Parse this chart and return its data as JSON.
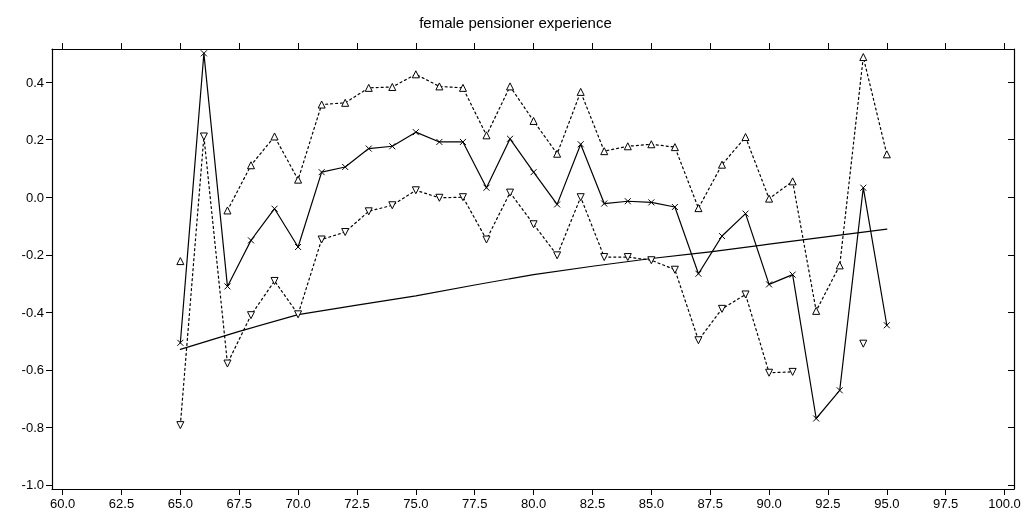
{
  "chart_data": {
    "type": "line",
    "title": "female pensioner experience",
    "x": [
      65,
      66,
      67,
      68,
      69,
      70,
      71,
      72,
      73,
      74,
      75,
      76,
      77,
      78,
      79,
      80,
      81,
      82,
      83,
      84,
      85,
      86,
      87,
      88,
      89,
      90,
      91,
      92,
      93,
      94,
      95
    ],
    "series": [
      {
        "color": "#000000",
        "marker": "cross",
        "line_style": "solid",
        "values": [
          -0.506,
          0.5,
          -0.31,
          -0.15,
          -0.04,
          -0.173,
          0.087,
          0.105,
          0.169,
          0.177,
          0.226,
          0.192,
          0.192,
          0.033,
          0.203,
          0.087,
          -0.025,
          0.184,
          -0.022,
          -0.014,
          -0.018,
          -0.034,
          -0.266,
          -0.135,
          -0.057,
          -0.303,
          -0.269,
          -0.769,
          -0.671,
          0.033,
          -0.445
        ]
      },
      {
        "color": "#000000",
        "marker": "triangle",
        "line_style": "dotted",
        "values": [
          -0.222,
          null,
          -0.046,
          0.111,
          0.211,
          0.061,
          0.322,
          0.328,
          0.38,
          0.383,
          0.427,
          0.385,
          0.38,
          0.215,
          0.385,
          0.265,
          0.151,
          0.366,
          0.16,
          0.177,
          0.184,
          0.174,
          -0.038,
          0.113,
          0.209,
          -0.005,
          0.055,
          -0.395,
          -0.237,
          0.487,
          0.149
        ]
      },
      {
        "color": "#000000",
        "marker": "triangle-down",
        "line_style": "dotted",
        "values": [
          -0.792,
          0.211,
          -0.578,
          -0.41,
          -0.291,
          -0.407,
          -0.147,
          -0.121,
          -0.049,
          -0.028,
          0.024,
          -0.002,
          0,
          -0.147,
          0.016,
          -0.094,
          -0.202,
          0,
          -0.208,
          -0.208,
          -0.219,
          -0.252,
          -0.497,
          -0.388,
          -0.338,
          -0.61,
          -0.607,
          null,
          null,
          -0.509,
          null
        ]
      },
      {
        "color": "#000000",
        "marker": "none",
        "line_style": "solid",
        "x": [
          65,
          67.5,
          70,
          72.5,
          75,
          77.5,
          80,
          82.5,
          85,
          87.5,
          90,
          92.5,
          95
        ],
        "values": [
          -0.529,
          -0.466,
          -0.408,
          -0.375,
          -0.343,
          -0.305,
          -0.269,
          -0.24,
          -0.213,
          -0.19,
          -0.163,
          -0.137,
          -0.111
        ]
      }
    ],
    "xlim": [
      59.55,
      100.4
    ],
    "xticks": [
      {
        "value": 60,
        "label": "60.0"
      },
      {
        "value": 62.5,
        "label": "62.5"
      },
      {
        "value": 65,
        "label": "65.0"
      },
      {
        "value": 67.5,
        "label": "67.5"
      },
      {
        "value": 70,
        "label": "70.0"
      },
      {
        "value": 72.5,
        "label": "72.5"
      },
      {
        "value": 75,
        "label": "75.0"
      },
      {
        "value": 77.5,
        "label": "77.5"
      },
      {
        "value": 80,
        "label": "80.0"
      },
      {
        "value": 82.5,
        "label": "82.5"
      },
      {
        "value": 85,
        "label": "85.0"
      },
      {
        "value": 87.5,
        "label": "87.5"
      },
      {
        "value": 90,
        "label": "90.0"
      },
      {
        "value": 92.5,
        "label": "92.5"
      },
      {
        "value": 95,
        "label": "95.0"
      },
      {
        "value": 97.5,
        "label": "97.5"
      },
      {
        "value": 100,
        "label": "100.0"
      }
    ],
    "ylim": [
      -1.014,
      0.515
    ],
    "yticks": [
      {
        "value": 0.4,
        "label": "0.4"
      },
      {
        "value": 0.2,
        "label": "0.2"
      },
      {
        "value": 0,
        "label": "0.0"
      },
      {
        "value": -0.2,
        "label": "-0.2"
      },
      {
        "value": -0.4,
        "label": "-0.4"
      },
      {
        "value": -0.6,
        "label": "-0.6"
      },
      {
        "value": -0.8,
        "label": "-0.8"
      },
      {
        "value": -1,
        "label": "-1.0"
      }
    ],
    "grid": false
  }
}
